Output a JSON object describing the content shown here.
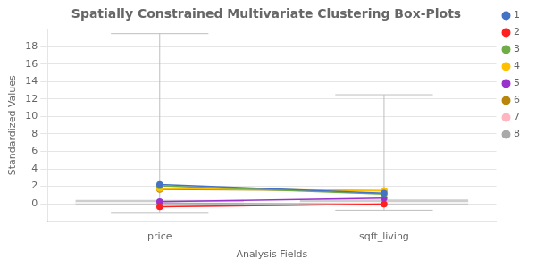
{
  "chart_data": {
    "type": "box",
    "title": "Spatially Constrained Multivariate Clustering Box-Plots",
    "x_label": "Analysis Fields",
    "y_label": "Standardized Values",
    "categories": [
      "price",
      "sqft_living"
    ],
    "ylim": [
      -2,
      20
    ],
    "yticks": [
      0,
      2,
      4,
      6,
      8,
      10,
      12,
      14,
      16,
      18
    ],
    "grid": true,
    "legend": "right",
    "series": [
      {
        "type": "box",
        "color": "#BEBEBE",
        "values": [
          {
            "low": -1.0,
            "q1": -0.15,
            "median": 0.1,
            "q3": 0.45,
            "high": 19.5
          },
          {
            "low": -0.75,
            "q1": -0.15,
            "median": 0.1,
            "q3": 0.5,
            "high": 12.5
          }
        ]
      },
      {
        "type": "line",
        "name": "1",
        "color": "#4472C4",
        "marker": "circle",
        "values": [
          2.2,
          1.2
        ]
      },
      {
        "type": "line",
        "name": "2",
        "color": "#FF2020",
        "marker": "circle",
        "values": [
          -0.35,
          -0.05
        ]
      },
      {
        "type": "line",
        "name": "3",
        "color": "#70AD47",
        "marker": "circle",
        "values": [
          2.05,
          1.1
        ]
      },
      {
        "type": "line",
        "name": "4",
        "color": "#FFC000",
        "marker": "circle",
        "values": [
          1.75,
          1.5
        ]
      },
      {
        "type": "line",
        "name": "5",
        "color": "#9933CC",
        "marker": "circle",
        "values": [
          0.25,
          0.65
        ]
      },
      {
        "type": "line",
        "name": "6",
        "color": "#B8860B",
        "marker": "circle",
        "values": [
          1.65,
          1.5
        ]
      },
      {
        "type": "line",
        "name": "7",
        "color": "#FFB6C1",
        "marker": "circle",
        "values": [
          -0.35,
          -0.05
        ]
      },
      {
        "type": "line",
        "name": "8",
        "color": "#AAAAAA",
        "marker": "circle",
        "values": [
          0.05,
          -0.05
        ]
      }
    ]
  }
}
